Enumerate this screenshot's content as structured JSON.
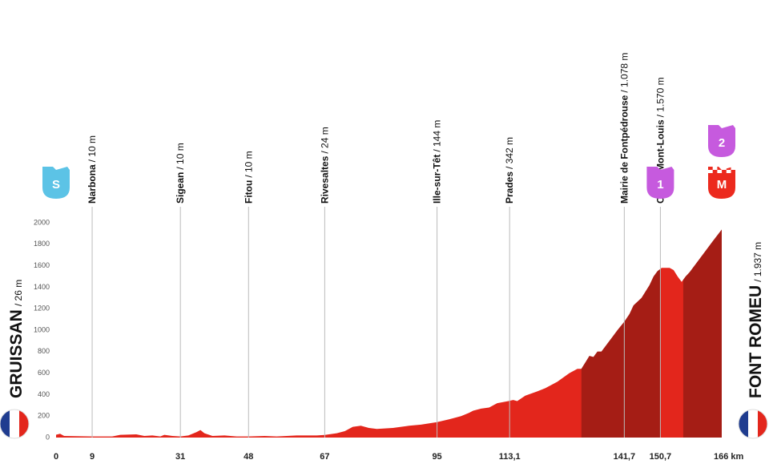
{
  "chart_data": {
    "type": "area",
    "x": [
      0,
      1,
      2,
      9,
      14,
      16,
      20,
      22,
      24,
      26,
      27,
      29,
      31,
      33,
      35,
      36,
      37,
      39,
      42,
      45,
      48,
      52,
      55,
      60,
      65,
      67,
      70,
      72,
      74,
      76,
      78,
      80,
      84,
      88,
      91,
      95,
      98,
      101,
      103,
      104,
      106,
      108,
      110,
      113.1,
      114,
      115,
      117,
      120,
      122,
      125,
      128,
      130,
      131,
      132,
      133,
      134,
      135,
      136,
      138,
      140,
      141.7,
      143,
      144,
      146,
      148,
      149,
      150,
      150.7,
      151,
      153,
      154,
      155,
      156,
      157,
      158,
      160,
      162,
      164,
      166
    ],
    "values": [
      26,
      35,
      15,
      10,
      10,
      25,
      30,
      15,
      20,
      10,
      25,
      15,
      10,
      20,
      50,
      70,
      40,
      15,
      20,
      10,
      10,
      15,
      10,
      20,
      20,
      24,
      40,
      60,
      100,
      110,
      90,
      80,
      90,
      110,
      120,
      144,
      170,
      200,
      230,
      250,
      270,
      280,
      320,
      342,
      350,
      340,
      390,
      430,
      460,
      520,
      600,
      640,
      640,
      700,
      760,
      750,
      800,
      800,
      900,
      1000,
      1078,
      1150,
      1230,
      1300,
      1420,
      1500,
      1550,
      1570,
      1580,
      1580,
      1560,
      1500,
      1450,
      1500,
      1540,
      1640,
      1740,
      1840,
      1937
    ],
    "color": "#e3261c",
    "xlim": [
      0,
      166
    ],
    "ylim": [
      0,
      2000
    ],
    "yticks": [
      0,
      200,
      400,
      600,
      800,
      1000,
      1200,
      1400,
      1600,
      1800,
      2000
    ],
    "xticks": [
      0,
      9,
      31,
      48,
      67,
      95,
      {
        "value": 113.1,
        "label": "113,1"
      },
      {
        "value": 141.7,
        "label": "141,7"
      },
      {
        "value": 150.7,
        "label": "150,7"
      },
      {
        "value": 166,
        "label": "166 km"
      }
    ],
    "shading": [
      {
        "from": 131,
        "to": 150.7,
        "color": "#a51d15"
      },
      {
        "from": 156.4,
        "to": 166,
        "color": "#a51d15"
      }
    ],
    "waypoints": [
      {
        "km": 9,
        "name": "Narbona",
        "elevation": "/ 10 m"
      },
      {
        "km": 31,
        "name": "Sigean",
        "elevation": "/ 10 m"
      },
      {
        "km": 48,
        "name": "Fitou",
        "elevation": "/ 10 m"
      },
      {
        "km": 67,
        "name": "Rivesaltes",
        "elevation": "/ 24 m"
      },
      {
        "km": 95,
        "name": "Ille-sur-Têt",
        "elevation": "/ 144 m"
      },
      {
        "km": 113.1,
        "name": "Prades",
        "elevation": "/ 342 m"
      },
      {
        "km": 141.7,
        "name": "Mairie de Fontpédrouse",
        "elevation": "/ 1.078 m"
      },
      {
        "km": 150.7,
        "name": "Col de Mont-Louis",
        "elevation": "/ 1.570 m"
      }
    ],
    "start": {
      "name": "GRUISSAN",
      "elevation": "/ 26 m"
    },
    "finish": {
      "name": "FONT ROMEU",
      "elevation": "/ 1.937 m"
    },
    "markers": [
      {
        "km": 0,
        "label": "S",
        "color": "#5cc3e6"
      },
      {
        "km": 150.7,
        "label": "1",
        "color": "#c65ade"
      },
      {
        "km": 166,
        "label": "M",
        "color": "#ec2a1e"
      },
      {
        "km": 166,
        "label": "2",
        "color": "#c65ade"
      }
    ]
  }
}
